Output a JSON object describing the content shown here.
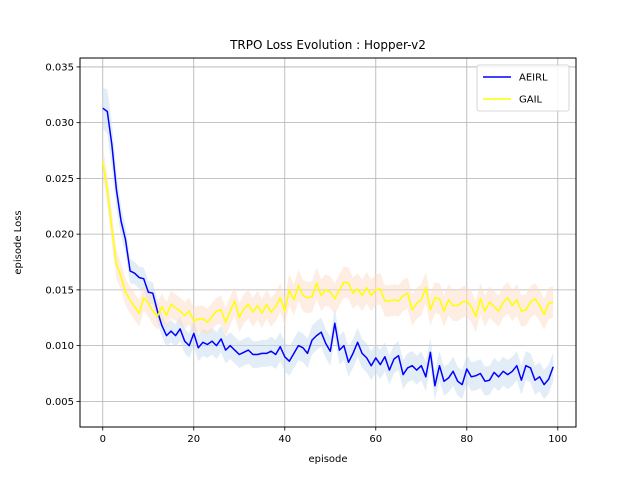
{
  "chart_data": {
    "type": "line",
    "title": "TRPO Loss Evolution : Hopper-v2",
    "xlabel": "episode",
    "ylabel": "episode Loss",
    "xlim": [
      -5,
      104
    ],
    "ylim": [
      0.0027,
      0.0358
    ],
    "xticks": [
      0,
      20,
      40,
      60,
      80,
      100
    ],
    "yticks": [
      0.005,
      0.01,
      0.015,
      0.02,
      0.025,
      0.03,
      0.035
    ],
    "ytick_labels": [
      "0.005",
      "0.010",
      "0.015",
      "0.020",
      "0.025",
      "0.030",
      "0.035"
    ],
    "grid": true,
    "legend_position": "top-right",
    "series": [
      {
        "name": "AEIRL",
        "color": "#0000ff",
        "band_color": "#c6dbef",
        "values": [
          0.0313,
          0.031,
          0.028,
          0.024,
          0.0212,
          0.0195,
          0.0167,
          0.0165,
          0.0161,
          0.016,
          0.0148,
          0.0147,
          0.0131,
          0.0118,
          0.0109,
          0.0113,
          0.0109,
          0.0115,
          0.0104,
          0.01,
          0.0111,
          0.0098,
          0.0103,
          0.0101,
          0.0104,
          0.01,
          0.0106,
          0.0096,
          0.01,
          0.0096,
          0.0092,
          0.0094,
          0.0096,
          0.0092,
          0.0092,
          0.0093,
          0.0093,
          0.0095,
          0.0092,
          0.0099,
          0.009,
          0.0086,
          0.0093,
          0.01,
          0.0098,
          0.0093,
          0.0105,
          0.0109,
          0.0112,
          0.0102,
          0.0095,
          0.012,
          0.0096,
          0.01,
          0.0085,
          0.0093,
          0.0103,
          0.0093,
          0.0089,
          0.0082,
          0.0089,
          0.0083,
          0.009,
          0.0078,
          0.0088,
          0.0091,
          0.0074,
          0.008,
          0.0082,
          0.0078,
          0.0082,
          0.0072,
          0.0094,
          0.0064,
          0.0082,
          0.0068,
          0.0071,
          0.0077,
          0.0068,
          0.0065,
          0.0079,
          0.0072,
          0.0073,
          0.0075,
          0.0068,
          0.0069,
          0.0076,
          0.0072,
          0.0077,
          0.0074,
          0.0077,
          0.0082,
          0.0069,
          0.0082,
          0.008,
          0.0069,
          0.0072,
          0.0065,
          0.007,
          0.0081
        ],
        "band_halfwidth": [
          0.0018,
          0.002,
          0.002,
          0.0016,
          0.0013,
          0.0012,
          0.0011,
          0.001,
          0.001,
          0.001,
          0.001,
          0.001,
          0.001,
          0.001,
          0.001,
          0.001,
          0.001,
          0.0011,
          0.0011,
          0.0011,
          0.0012,
          0.0012,
          0.0012,
          0.0012,
          0.0012,
          0.0012,
          0.0012,
          0.0012,
          0.0012,
          0.0012,
          0.0012,
          0.0012,
          0.0012,
          0.0012,
          0.0012,
          0.0012,
          0.0012,
          0.0013,
          0.0013,
          0.0013,
          0.0013,
          0.0013,
          0.0013,
          0.0013,
          0.0013,
          0.0013,
          0.0013,
          0.0013,
          0.0013,
          0.0013,
          0.0013,
          0.0013,
          0.0013,
          0.0013,
          0.0013,
          0.0013,
          0.0013,
          0.0013,
          0.0013,
          0.0013,
          0.0013,
          0.0013,
          0.0013,
          0.0013,
          0.0013,
          0.0013,
          0.0013,
          0.0013,
          0.0013,
          0.0013,
          0.0013,
          0.0013,
          0.0013,
          0.0013,
          0.0013,
          0.0013,
          0.0013,
          0.0013,
          0.0013,
          0.0013,
          0.0013,
          0.0013,
          0.0013,
          0.0013,
          0.0013,
          0.0013,
          0.0013,
          0.0013,
          0.0013,
          0.0013,
          0.0013,
          0.0013,
          0.0013,
          0.0013,
          0.0013,
          0.0013,
          0.0013,
          0.0013,
          0.0013,
          0.0013
        ]
      },
      {
        "name": "GAIL",
        "color": "#ffff00",
        "band_color": "#fddbc7",
        "values": [
          0.0265,
          0.024,
          0.0205,
          0.0173,
          0.0162,
          0.0148,
          0.0141,
          0.0135,
          0.0129,
          0.0143,
          0.0138,
          0.0131,
          0.0126,
          0.0135,
          0.0127,
          0.0137,
          0.0134,
          0.0131,
          0.0127,
          0.0131,
          0.0122,
          0.0124,
          0.0124,
          0.0121,
          0.0126,
          0.0131,
          0.0132,
          0.0121,
          0.0131,
          0.014,
          0.0125,
          0.0133,
          0.0137,
          0.013,
          0.0136,
          0.0129,
          0.0137,
          0.013,
          0.0135,
          0.0143,
          0.0131,
          0.015,
          0.0141,
          0.0154,
          0.0145,
          0.0143,
          0.0144,
          0.0156,
          0.0145,
          0.015,
          0.0148,
          0.0142,
          0.015,
          0.0157,
          0.0156,
          0.0147,
          0.0151,
          0.0145,
          0.0152,
          0.0145,
          0.015,
          0.0151,
          0.014,
          0.014,
          0.0141,
          0.014,
          0.0145,
          0.0147,
          0.0132,
          0.0138,
          0.0141,
          0.0152,
          0.0132,
          0.0143,
          0.0142,
          0.0131,
          0.0141,
          0.0136,
          0.0136,
          0.0139,
          0.014,
          0.0135,
          0.0126,
          0.0142,
          0.0131,
          0.0139,
          0.0135,
          0.0131,
          0.0139,
          0.0143,
          0.0136,
          0.0141,
          0.0131,
          0.0132,
          0.0139,
          0.0142,
          0.0136,
          0.0128,
          0.0138,
          0.0139
        ],
        "band_halfwidth": [
          0.0013,
          0.0014,
          0.0014,
          0.0013,
          0.0012,
          0.0012,
          0.0012,
          0.0012,
          0.0012,
          0.0012,
          0.0012,
          0.0012,
          0.0012,
          0.0012,
          0.0012,
          0.0012,
          0.0012,
          0.0012,
          0.0012,
          0.0012,
          0.0012,
          0.0012,
          0.0012,
          0.0012,
          0.0012,
          0.0012,
          0.0013,
          0.0013,
          0.0013,
          0.0013,
          0.0013,
          0.0013,
          0.0013,
          0.0013,
          0.0013,
          0.0013,
          0.0013,
          0.0013,
          0.0013,
          0.0013,
          0.0013,
          0.0014,
          0.0014,
          0.0014,
          0.0014,
          0.0014,
          0.0014,
          0.0014,
          0.0014,
          0.0014,
          0.0014,
          0.0014,
          0.0014,
          0.0014,
          0.0014,
          0.0014,
          0.0014,
          0.0014,
          0.0014,
          0.0014,
          0.0014,
          0.0014,
          0.0014,
          0.0014,
          0.0014,
          0.0014,
          0.0014,
          0.0014,
          0.0014,
          0.0014,
          0.0014,
          0.0014,
          0.0014,
          0.0014,
          0.0014,
          0.0014,
          0.0014,
          0.0014,
          0.0014,
          0.0014,
          0.0014,
          0.0014,
          0.0014,
          0.0014,
          0.0014,
          0.0014,
          0.0014,
          0.0014,
          0.0014,
          0.0014,
          0.0014,
          0.0014,
          0.0014,
          0.0014,
          0.0014,
          0.0014,
          0.0014,
          0.0014,
          0.0014,
          0.0014
        ]
      }
    ]
  }
}
